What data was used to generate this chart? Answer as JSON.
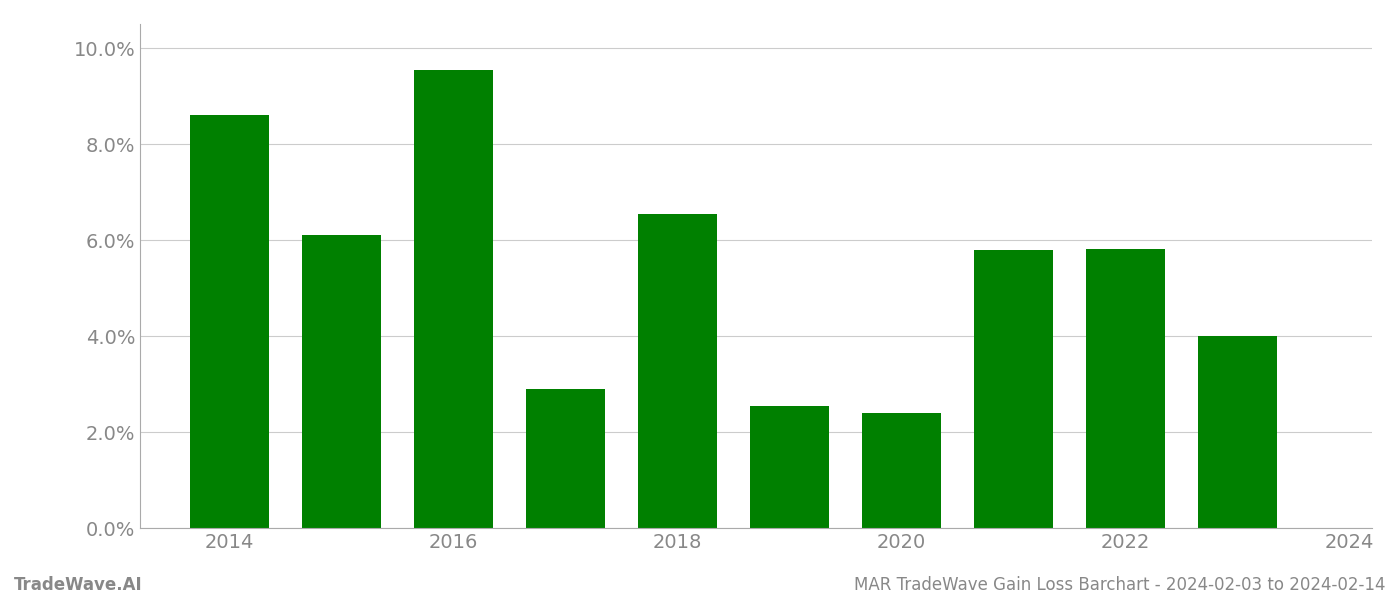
{
  "years": [
    2014,
    2015,
    2016,
    2017,
    2018,
    2019,
    2020,
    2021,
    2022,
    2023
  ],
  "values": [
    0.086,
    0.061,
    0.0955,
    0.029,
    0.0655,
    0.0255,
    0.024,
    0.058,
    0.0582,
    0.04
  ],
  "bar_color": "#008000",
  "ylim": [
    0,
    0.105
  ],
  "yticks": [
    0.0,
    0.02,
    0.04,
    0.06,
    0.08,
    0.1
  ],
  "xtick_labels": [
    "2014",
    "2016",
    "2018",
    "2020",
    "2022",
    "2024"
  ],
  "background_color": "#ffffff",
  "grid_color": "#cccccc",
  "bar_width": 0.7,
  "font_color": "#888888",
  "footer_left": "TradeWave.AI",
  "footer_right": "MAR TradeWave Gain Loss Barchart - 2024-02-03 to 2024-02-14",
  "footer_font_size": 12,
  "tick_font_size": 14
}
